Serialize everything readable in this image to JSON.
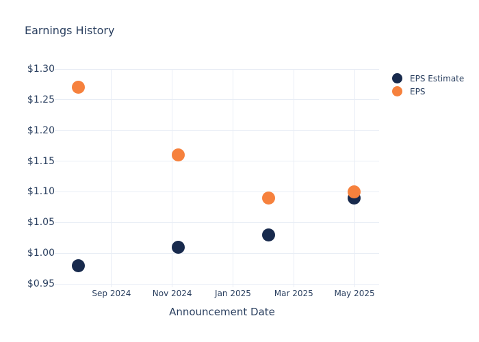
{
  "chart_data": {
    "type": "scatter",
    "title": "Earnings History",
    "xlabel": "Announcement Date",
    "ylabel": "",
    "grid": true,
    "legend_position": "outside-top-right",
    "background_color": "#ffffff",
    "grid_color": "#e8edf5",
    "text_color": "#2a3f5f",
    "marker_size_px": 19,
    "x_axis": {
      "unit": "months relative to Sep 1 2024",
      "tick_values": [
        0,
        2,
        4,
        6,
        8
      ],
      "tick_labels": [
        "Sep 2024",
        "Nov 2024",
        "Jan 2025",
        "Mar 2025",
        "May 2025"
      ],
      "range": [
        -1.53,
        8.81
      ]
    },
    "y_axis": {
      "tick_values": [
        0.95,
        1.0,
        1.05,
        1.1,
        1.15,
        1.2,
        1.25,
        1.3
      ],
      "tick_labels": [
        "$0.95",
        "$1.00",
        "$1.05",
        "$1.10",
        "$1.15",
        "$1.20",
        "$1.25",
        "$1.30"
      ],
      "range": [
        0.95,
        1.3
      ]
    },
    "series": [
      {
        "name": "EPS Estimate",
        "color": "#182a4d",
        "points": [
          {
            "x": -1.08,
            "approx_date": "early Aug 2024",
            "y": 0.98
          },
          {
            "x": 2.19,
            "approx_date": "early Nov 2024",
            "y": 1.01
          },
          {
            "x": 5.18,
            "approx_date": "early Feb 2025",
            "y": 1.03
          },
          {
            "x": 7.98,
            "approx_date": "early May 2025",
            "y": 1.09
          }
        ]
      },
      {
        "name": "EPS",
        "color": "#f6813d",
        "points": [
          {
            "x": -1.08,
            "approx_date": "early Aug 2024",
            "y": 1.27
          },
          {
            "x": 2.19,
            "approx_date": "early Nov 2024",
            "y": 1.16
          },
          {
            "x": 5.18,
            "approx_date": "early Feb 2025",
            "y": 1.09
          },
          {
            "x": 7.98,
            "approx_date": "early May 2025",
            "y": 1.1
          }
        ]
      }
    ]
  }
}
